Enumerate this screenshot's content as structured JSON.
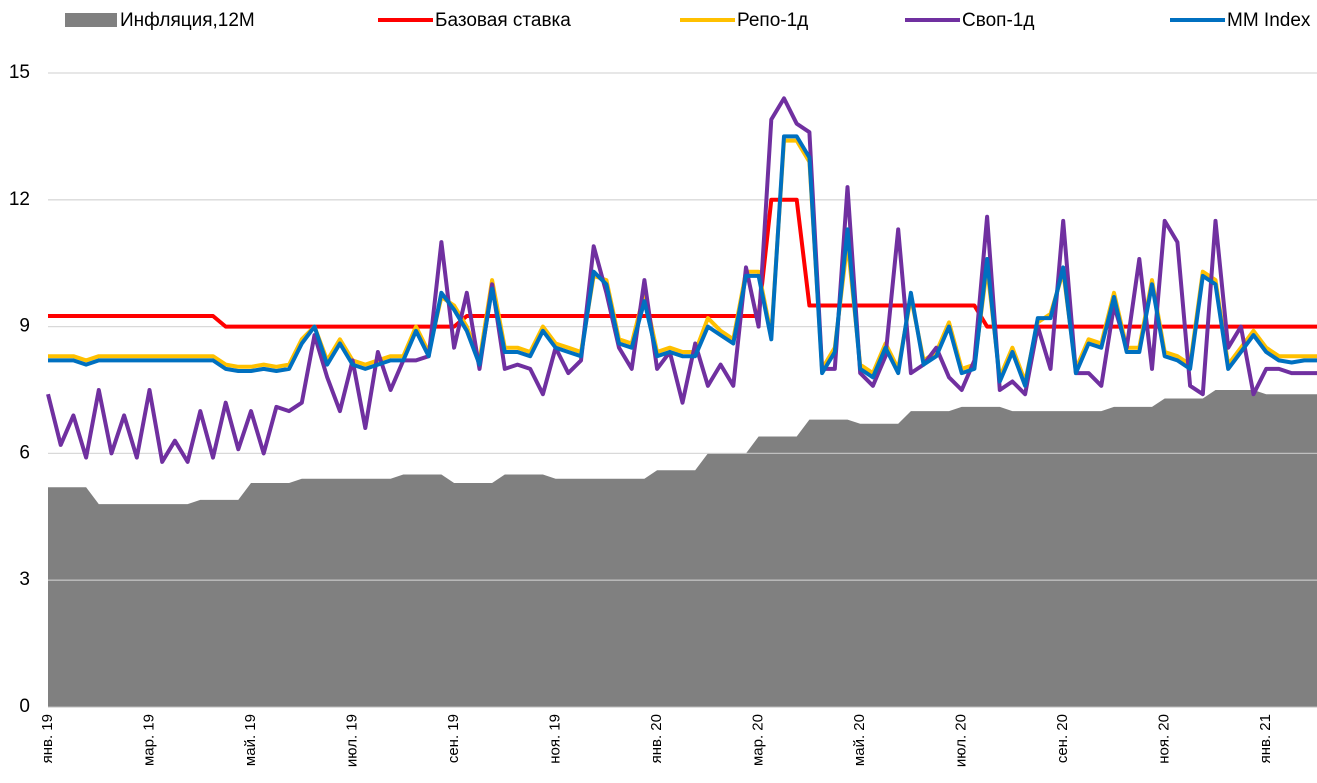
{
  "chart_data": {
    "type": "line",
    "categories": [
      "янв. 19",
      null,
      null,
      null,
      null,
      null,
      null,
      null,
      "мар. 19",
      null,
      null,
      null,
      null,
      null,
      null,
      null,
      "май. 19",
      null,
      null,
      null,
      null,
      null,
      null,
      null,
      "июл. 19",
      null,
      null,
      null,
      null,
      null,
      null,
      null,
      "сен. 19",
      null,
      null,
      null,
      null,
      null,
      null,
      null,
      "ноя. 19",
      null,
      null,
      null,
      null,
      null,
      null,
      null,
      "янв. 20",
      null,
      null,
      null,
      null,
      null,
      null,
      null,
      "мар. 20",
      null,
      null,
      null,
      null,
      null,
      null,
      null,
      "май. 20",
      null,
      null,
      null,
      null,
      null,
      null,
      null,
      "июл. 20",
      null,
      null,
      null,
      null,
      null,
      null,
      null,
      "сен. 20",
      null,
      null,
      null,
      null,
      null,
      null,
      null,
      "ноя. 20",
      null,
      null,
      null,
      null,
      null,
      null,
      null,
      "янв. 21",
      null,
      null,
      null,
      null
    ],
    "series": [
      {
        "name": "Инфляция,12M",
        "type": "area",
        "color": "#808080",
        "values": [
          5.2,
          5.2,
          5.2,
          5.2,
          4.8,
          4.8,
          4.8,
          4.8,
          4.8,
          4.8,
          4.8,
          4.8,
          4.9,
          4.9,
          4.9,
          4.9,
          5.3,
          5.3,
          5.3,
          5.3,
          5.4,
          5.4,
          5.4,
          5.4,
          5.4,
          5.4,
          5.4,
          5.4,
          5.5,
          5.5,
          5.5,
          5.5,
          5.3,
          5.3,
          5.3,
          5.3,
          5.5,
          5.5,
          5.5,
          5.5,
          5.4,
          5.4,
          5.4,
          5.4,
          5.4,
          5.4,
          5.4,
          5.4,
          5.6,
          5.6,
          5.6,
          5.6,
          6.0,
          6.0,
          6.0,
          6.0,
          6.4,
          6.4,
          6.4,
          6.4,
          6.8,
          6.8,
          6.8,
          6.8,
          6.7,
          6.7,
          6.7,
          6.7,
          7.0,
          7.0,
          7.0,
          7.0,
          7.1,
          7.1,
          7.1,
          7.1,
          7.0,
          7.0,
          7.0,
          7.0,
          7.0,
          7.0,
          7.0,
          7.0,
          7.1,
          7.1,
          7.1,
          7.1,
          7.3,
          7.3,
          7.3,
          7.3,
          7.5,
          7.5,
          7.5,
          7.5,
          7.4,
          7.4,
          7.4,
          7.4,
          7.4
        ]
      },
      {
        "name": "Базовая ставка",
        "type": "line",
        "color": "#ff0000",
        "values": [
          9.25,
          9.25,
          9.25,
          9.25,
          9.25,
          9.25,
          9.25,
          9.25,
          9.25,
          9.25,
          9.25,
          9.25,
          9.25,
          9.25,
          9,
          9,
          9,
          9,
          9,
          9,
          9,
          9,
          9,
          9,
          9,
          9,
          9,
          9,
          9,
          9,
          9,
          9,
          9,
          9.25,
          9.25,
          9.25,
          9.25,
          9.25,
          9.25,
          9.25,
          9.25,
          9.25,
          9.25,
          9.25,
          9.25,
          9.25,
          9.25,
          9.25,
          9.25,
          9.25,
          9.25,
          9.25,
          9.25,
          9.25,
          9.25,
          9.25,
          9.25,
          12,
          12,
          12,
          9.5,
          9.5,
          9.5,
          9.5,
          9.5,
          9.5,
          9.5,
          9.5,
          9.5,
          9.5,
          9.5,
          9.5,
          9.5,
          9.5,
          9,
          9,
          9,
          9,
          9,
          9,
          9,
          9,
          9,
          9,
          9,
          9,
          9,
          9,
          9,
          9,
          9,
          9,
          9,
          9,
          9,
          9,
          9,
          9,
          9,
          9,
          9
        ]
      },
      {
        "name": "Репо-1д",
        "type": "line",
        "color": "#ffc000",
        "values": [
          8.3,
          8.3,
          8.3,
          8.2,
          8.3,
          8.3,
          8.3,
          8.3,
          8.3,
          8.3,
          8.3,
          8.3,
          8.3,
          8.3,
          8.1,
          8.05,
          8.05,
          8.1,
          8.05,
          8.1,
          8.7,
          9.0,
          8.2,
          8.7,
          8.2,
          8.1,
          8.2,
          8.3,
          8.3,
          9.0,
          8.4,
          9.7,
          9.5,
          9.0,
          8.2,
          10.1,
          8.5,
          8.5,
          8.4,
          9.0,
          8.6,
          8.5,
          8.4,
          10.2,
          10.1,
          8.7,
          8.6,
          9.8,
          8.4,
          8.5,
          8.4,
          8.4,
          9.2,
          8.9,
          8.7,
          10.3,
          10.3,
          8.8,
          13.4,
          13.4,
          12.9,
          8.0,
          8.5,
          11.0,
          8.1,
          7.9,
          8.6,
          8.0,
          9.7,
          8.2,
          8.4,
          9.1,
          8.0,
          8.1,
          10.4,
          7.8,
          8.5,
          7.7,
          9.1,
          9.3,
          10.3,
          8.0,
          8.7,
          8.6,
          9.8,
          8.5,
          8.5,
          10.1,
          8.4,
          8.3,
          8.1,
          10.3,
          10.1,
          8.1,
          8.5,
          8.9,
          8.5,
          8.3,
          8.3,
          8.3,
          8.3
        ]
      },
      {
        "name": "Своп-1д",
        "type": "line",
        "color": "#7030a0",
        "values": [
          7.4,
          6.2,
          6.9,
          5.9,
          7.5,
          6.0,
          6.9,
          5.9,
          7.5,
          5.8,
          6.3,
          5.8,
          7.0,
          5.9,
          7.2,
          6.1,
          7.0,
          6.0,
          7.1,
          7.0,
          7.2,
          8.8,
          7.8,
          7.0,
          8.2,
          6.6,
          8.4,
          7.5,
          8.2,
          8.2,
          8.3,
          11.0,
          8.5,
          9.8,
          8.0,
          10.0,
          8.0,
          8.1,
          8.0,
          7.4,
          8.5,
          7.9,
          8.2,
          10.9,
          9.8,
          8.5,
          8.0,
          10.1,
          8.0,
          8.4,
          7.2,
          8.6,
          7.6,
          8.1,
          7.6,
          10.4,
          9.0,
          13.9,
          14.4,
          13.8,
          13.6,
          8.0,
          8.0,
          12.3,
          7.9,
          7.6,
          8.3,
          11.3,
          7.9,
          8.1,
          8.5,
          7.8,
          7.5,
          8.2,
          11.6,
          7.5,
          7.7,
          7.4,
          9.0,
          8.0,
          11.5,
          7.9,
          7.9,
          7.6,
          9.5,
          8.5,
          10.6,
          8.0,
          11.5,
          11.0,
          7.6,
          7.4,
          11.5,
          8.5,
          9.0,
          7.4,
          8.0,
          8.0,
          7.9,
          7.9,
          7.9
        ]
      },
      {
        "name": "MM Index",
        "type": "line",
        "color": "#0070c0",
        "values": [
          8.2,
          8.2,
          8.2,
          8.1,
          8.2,
          8.2,
          8.2,
          8.2,
          8.2,
          8.2,
          8.2,
          8.2,
          8.2,
          8.2,
          8.0,
          7.95,
          7.95,
          8.0,
          7.95,
          8.0,
          8.6,
          9.0,
          8.1,
          8.6,
          8.1,
          8.0,
          8.1,
          8.2,
          8.2,
          8.9,
          8.3,
          9.8,
          9.4,
          8.9,
          8.1,
          9.9,
          8.4,
          8.4,
          8.3,
          8.9,
          8.5,
          8.4,
          8.3,
          10.3,
          10.0,
          8.6,
          8.5,
          9.6,
          8.3,
          8.4,
          8.3,
          8.3,
          9.0,
          8.8,
          8.6,
          10.2,
          10.2,
          8.7,
          13.5,
          13.5,
          13.0,
          7.9,
          8.4,
          11.3,
          8.0,
          7.8,
          8.5,
          7.9,
          9.8,
          8.1,
          8.3,
          9.0,
          7.9,
          8.0,
          10.6,
          7.7,
          8.4,
          7.6,
          9.2,
          9.2,
          10.4,
          7.9,
          8.6,
          8.5,
          9.7,
          8.4,
          8.4,
          10.0,
          8.3,
          8.2,
          8.0,
          10.2,
          10.0,
          8.0,
          8.4,
          8.8,
          8.4,
          8.2,
          8.15,
          8.2,
          8.2
        ]
      }
    ],
    "ylim": [
      0,
      15
    ],
    "yticks": [
      0,
      3,
      6,
      9,
      12,
      15
    ],
    "grid": true,
    "legend": "top"
  }
}
